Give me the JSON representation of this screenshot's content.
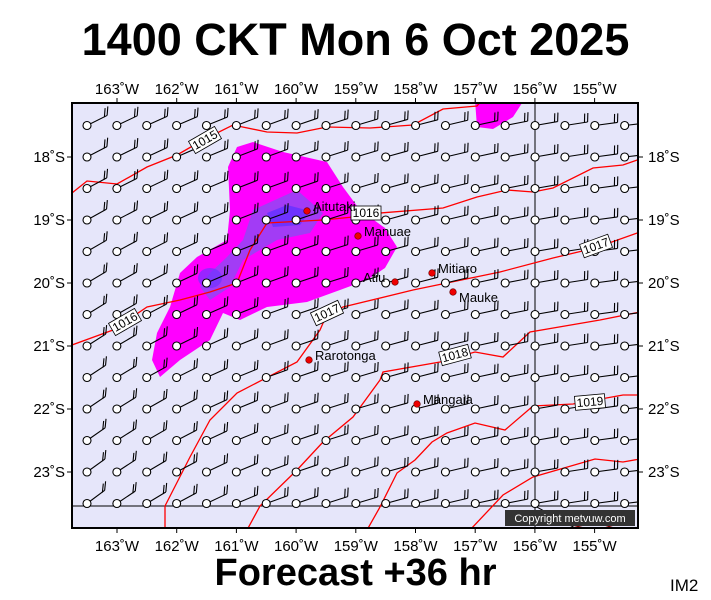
{
  "header": {
    "title": "1400 CKT Mon 6 Oct 2025"
  },
  "footer": {
    "forecast": "Forecast +36 hr",
    "image_code": "IM2"
  },
  "map": {
    "lon_labels": [
      "163˚W",
      "162˚W",
      "161˚W",
      "160˚W",
      "159˚W",
      "158˚W",
      "157˚W",
      "156˚W",
      "155˚W"
    ],
    "lat_labels": [
      "18˚S",
      "19˚S",
      "20˚S",
      "21˚S",
      "22˚S",
      "23˚S"
    ],
    "islands": [
      "Aitutaki",
      "Manuae",
      "Atiu",
      "Mitiaro",
      "Mauke",
      "Rarotonga",
      "Mangaia"
    ],
    "isobar_labels": [
      "1015",
      "1016",
      "1016",
      "1017",
      "1017",
      "1018",
      "1019"
    ],
    "copyright": "Copyright metvuw.com",
    "colors": {
      "background": "#e6e6fa",
      "rain_light": "#ff00ff",
      "rain_medium": "#a23cf5",
      "rain_heavy": "#6e33ff",
      "isobar": "#ff0000"
    }
  }
}
